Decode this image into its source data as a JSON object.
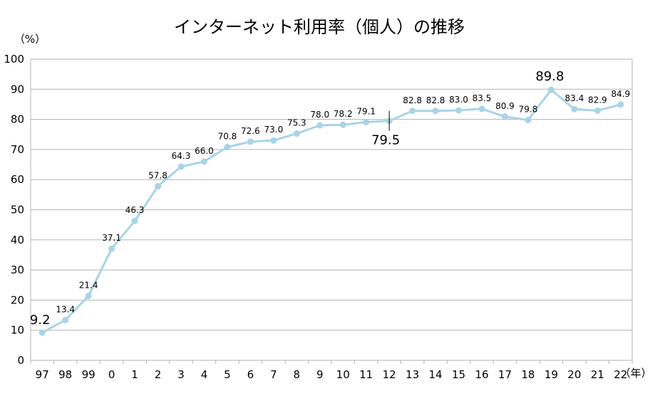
{
  "chart_data": {
    "type": "line",
    "title": "インターネット利用率（個人）の推移",
    "y_unit_label": "（%）",
    "x_unit_label": "（年）",
    "categories": [
      "97",
      "98",
      "99",
      "0",
      "1",
      "2",
      "3",
      "4",
      "5",
      "6",
      "7",
      "8",
      "9",
      "10",
      "11",
      "12",
      "13",
      "14",
      "15",
      "16",
      "17",
      "18",
      "19",
      "20",
      "21",
      "22"
    ],
    "series": [
      {
        "values": [
          9.2,
          13.4,
          21.4,
          37.1,
          46.3,
          57.8,
          64.3,
          66.0,
          70.8,
          72.6,
          73.0,
          75.3,
          78.0,
          78.2,
          79.1,
          79.5,
          82.8,
          82.8,
          83.0,
          83.5,
          80.9,
          79.8,
          89.8,
          83.4,
          82.9,
          84.9
        ],
        "labels": [
          "9.2",
          "13.4",
          "21.4",
          "37.1",
          "46.3",
          "57.8",
          "64.3",
          "66.0",
          "70.8",
          "72.6",
          "73.0",
          "75.3",
          "78.0",
          "78.2",
          "79.1",
          "79.5",
          "82.8",
          "82.8",
          "83.0",
          "83.5",
          "80.9",
          "79.8",
          "89.8",
          "83.4",
          "82.9",
          "84.9"
        ],
        "color": "#a8d4e6"
      }
    ],
    "ylim": [
      0,
      100
    ],
    "yticks": [
      0,
      10,
      20,
      30,
      40,
      50,
      60,
      70,
      80,
      90,
      100
    ],
    "grid": true,
    "legend": "none",
    "emphasized_labels": [
      "9.2",
      "79.5",
      "89.8"
    ]
  }
}
